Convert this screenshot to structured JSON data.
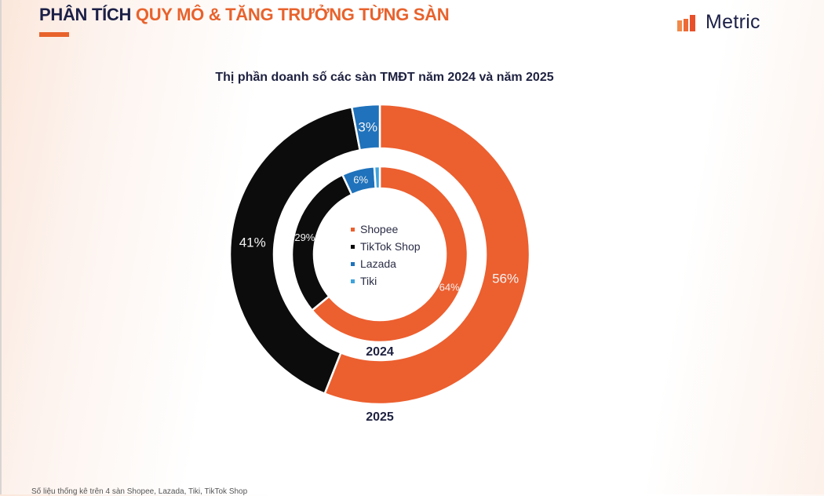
{
  "header": {
    "title_part1": "PHÂN TÍCH",
    "title_part2": "QUY MÔ & TĂNG TRƯỞNG TỪNG SÀN",
    "accent_color": "#e8622c",
    "dark_color": "#1c2047"
  },
  "brand": {
    "name": "Metric",
    "icon": "bar-chart-logo-icon"
  },
  "chart": {
    "title": "Thị phần doanh số các sàn TMĐT năm 2024 và năm 2025",
    "inner_label": "2024",
    "outer_label": "2025"
  },
  "legend": [
    {
      "label": "Shopee",
      "color": "#ec5f2f"
    },
    {
      "label": "TikTok Shop",
      "color": "#0c0c0c"
    },
    {
      "label": "Lazada",
      "color": "#1f72bb"
    },
    {
      "label": "Tiki",
      "color": "#3fa3dc"
    }
  ],
  "footnote": "Số liệu thống kê trên 4 sàn Shopee, Lazada, Tiki, TikTok Shop",
  "chart_data": {
    "type": "pie",
    "subtype": "nested-donut",
    "title": "Thị phần doanh số các sàn TMĐT năm 2024 và năm 2025",
    "categories": [
      "Shopee",
      "TikTok Shop",
      "Lazada",
      "Tiki"
    ],
    "colors": [
      "#ec5f2f",
      "#0c0c0c",
      "#1f72bb",
      "#3fa3dc"
    ],
    "series": [
      {
        "name": "2024",
        "ring": "inner",
        "values": [
          64,
          29,
          6,
          1
        ],
        "labels": [
          "64%",
          "29%",
          "6%",
          ""
        ]
      },
      {
        "name": "2025",
        "ring": "outer",
        "values": [
          56,
          41,
          3,
          0
        ],
        "labels": [
          "56%",
          "41%",
          "3%",
          ""
        ]
      }
    ],
    "unit": "%",
    "legend_position": "center",
    "start_angle": "12 o'clock, clockwise"
  }
}
